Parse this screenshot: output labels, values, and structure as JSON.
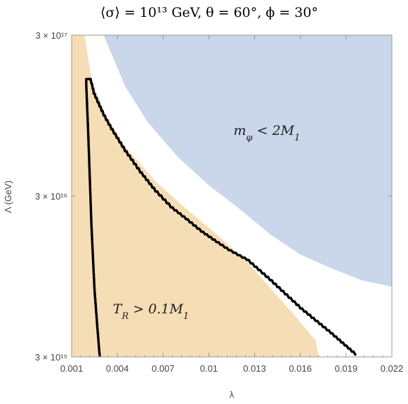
{
  "chart_data": {
    "type": "area",
    "title": "⟨σ⟩ = 10¹³ GeV, θ = 60°, ϕ = 30°",
    "xlabel": "λ",
    "ylabel": "Λ (GeV)",
    "xlim": [
      0.001,
      0.022
    ],
    "ylim": [
      3000000000000000.0,
      3e+17
    ],
    "yscale": "log",
    "x_ticks": [
      0.001,
      0.004,
      0.007,
      0.01,
      0.013,
      0.016,
      0.019,
      0.022
    ],
    "x_tick_labels": [
      "0.001",
      "0.004",
      "0.007",
      "0.01",
      "0.013",
      "0.016",
      "0.019",
      "0.022"
    ],
    "y_ticks": [
      3000000000000000.0,
      3e+16,
      3e+17
    ],
    "y_tick_labels": [
      "3 × 10¹⁵",
      "3 × 10¹⁶",
      "3 × 10¹⁷"
    ],
    "grid": false,
    "colors": {
      "orange_region": "#f5ddb6",
      "blue_region": "#cad6ea",
      "curve": "#000000",
      "frame": "#999999"
    },
    "regions": [
      {
        "label": "T_R > 0.1M_1",
        "label_x": 0.0062,
        "label_y": 5600000000000000.0,
        "color_key": "orange_region",
        "polygon": [
          [
            0.001,
            3000000000000000.0
          ],
          [
            0.001,
            3e+17
          ],
          [
            0.00185,
            3e+17
          ],
          [
            0.0023,
            1.6e+17
          ],
          [
            0.0031,
            1e+17
          ],
          [
            0.0045,
            6.1e+16
          ],
          [
            0.0065,
            3.7e+16
          ],
          [
            0.0085,
            2.5e+16
          ],
          [
            0.0105,
            1.74e+16
          ],
          [
            0.0125,
            1.17e+16
          ],
          [
            0.014,
            8100000000000000.0
          ],
          [
            0.0155,
            5600000000000000.0
          ],
          [
            0.017,
            3800000000000000.0
          ],
          [
            0.0172,
            3000000000000000.0
          ]
        ]
      },
      {
        "label": "m_φ < 2M_1",
        "label_x": 0.0138,
        "label_y": 7.2e+16,
        "color_key": "blue_region",
        "polygon": [
          [
            0.0031,
            3e+17
          ],
          [
            0.0045,
            1.45e+17
          ],
          [
            0.006,
            8.6e+16
          ],
          [
            0.008,
            5.2e+16
          ],
          [
            0.01,
            3.5e+16
          ],
          [
            0.012,
            2.5e+16
          ],
          [
            0.014,
            1.74e+16
          ],
          [
            0.016,
            1.3e+16
          ],
          [
            0.018,
            1.07e+16
          ],
          [
            0.02,
            9000000000000000.0
          ],
          [
            0.022,
            8200000000000000.0
          ],
          [
            0.022,
            3e+17
          ]
        ]
      }
    ],
    "series": [
      {
        "color_key": "curve",
        "x": [
          0.00285,
          0.0027,
          0.0025,
          0.0023,
          0.0021,
          0.00196,
          0.00196,
          0.0022,
          0.0023,
          0.00245,
          0.0027,
          0.0031,
          0.0036,
          0.0045,
          0.0055,
          0.0065,
          0.0075,
          0.0085,
          0.0095,
          0.0105,
          0.0113,
          0.0125,
          0.014,
          0.016,
          0.018,
          0.0196
        ],
        "y": [
          3000000000000000.0,
          4500000000000000.0,
          8000000000000000.0,
          2e+16,
          7e+16,
          1.5e+17,
          1.6e+17,
          1.6e+17,
          1.5e+17,
          1.3e+17,
          1.15e+17,
          9.5e+16,
          7.8e+16,
          5.7e+16,
          4.2e+16,
          3.2e+16,
          2.55e+16,
          2.15e+16,
          1.8e+16,
          1.55e+16,
          1.38e+16,
          1.2e+16,
          9000000000000000.0,
          6000000000000000.0,
          4200000000000000.0,
          3100000000000000.0
        ]
      }
    ]
  }
}
